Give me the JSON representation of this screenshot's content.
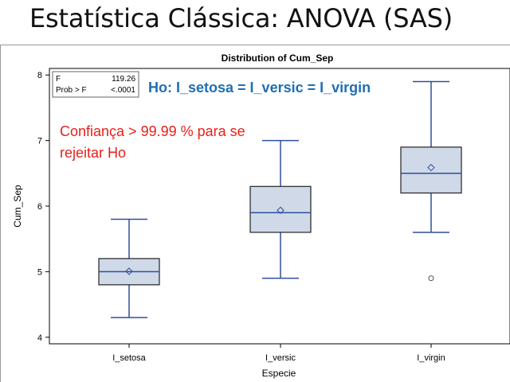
{
  "slide": {
    "title": "Estatística Clássica: ANOVA (SAS)"
  },
  "stats_box": {
    "f_label": "F",
    "f_value": "119.26",
    "p_label": "Prob > F",
    "p_value": "<.0001"
  },
  "annotations": {
    "hypothesis": "Ho: I_setosa = I_versic = I_virgin",
    "conclusion_line1": "Confiança > 99.99 % para se",
    "conclusion_line2": "rejeitar Ho"
  },
  "colors": {
    "box_fill": "#cfd9e8",
    "box_stroke": "#2f4f9a",
    "hypothesis": "#1f6fb4",
    "conclusion": "#e8201a"
  },
  "chart_data": {
    "type": "boxplot",
    "title": "Distribution of Cum_Sep",
    "xlabel": "Especie",
    "ylabel": "Cum_Sep",
    "ylim": [
      3.9,
      8.1
    ],
    "yticks": [
      4,
      5,
      6,
      7,
      8
    ],
    "categories": [
      "I_setosa",
      "I_versic",
      "I_virgin"
    ],
    "boxes": [
      {
        "category": "I_setosa",
        "whisker_low": 4.3,
        "q1": 4.8,
        "median": 5.0,
        "mean": 5.006,
        "q3": 5.2,
        "whisker_high": 5.8,
        "outliers": []
      },
      {
        "category": "I_versic",
        "whisker_low": 4.9,
        "q1": 5.6,
        "median": 5.9,
        "mean": 5.936,
        "q3": 6.3,
        "whisker_high": 7.0,
        "outliers": []
      },
      {
        "category": "I_virgin",
        "whisker_low": 5.6,
        "q1": 6.2,
        "median": 6.5,
        "mean": 6.588,
        "q3": 6.9,
        "whisker_high": 7.9,
        "outliers": [
          4.9
        ]
      }
    ],
    "grid": false,
    "legend": "none"
  }
}
